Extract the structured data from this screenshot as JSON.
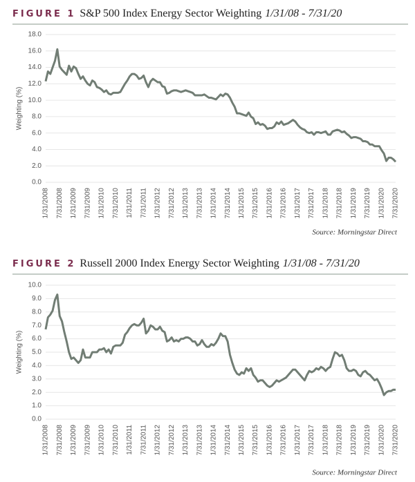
{
  "chart_data": [
    {
      "type": "line",
      "figure_label": "FIGURE 1",
      "title": "S&P 500 Index Energy Sector Weighting",
      "title_dates": "1/31/08 - 7/31/20",
      "y_label": "Weighting (%)",
      "source": "Source: Morningstar Direct",
      "color": "#717d74",
      "grid": true,
      "ylim": [
        0,
        18
      ],
      "yticks": [
        {
          "value": 0,
          "label": "0.0"
        },
        {
          "value": 2,
          "label": "2.0"
        },
        {
          "value": 4,
          "label": "4.0"
        },
        {
          "value": 6,
          "label": "6.0"
        },
        {
          "value": 8,
          "label": "8.0"
        },
        {
          "value": 10,
          "label": "10.0"
        },
        {
          "value": 12,
          "label": "12.0"
        },
        {
          "value": 14,
          "label": "14.0"
        },
        {
          "value": 16,
          "label": "16.0"
        },
        {
          "value": 18,
          "label": "18.0"
        }
      ],
      "categories": [
        "1/31/2008",
        null,
        null,
        null,
        null,
        null,
        "7/31/2008",
        null,
        null,
        null,
        null,
        null,
        "1/31/2009",
        null,
        null,
        null,
        null,
        null,
        "7/31/2009",
        null,
        null,
        null,
        null,
        null,
        "1/31/2010",
        null,
        null,
        null,
        null,
        null,
        "7/31/2010",
        null,
        null,
        null,
        null,
        null,
        "1/31/2011",
        null,
        null,
        null,
        null,
        null,
        "7/31/2011",
        null,
        null,
        null,
        null,
        null,
        "1/31/2012",
        null,
        null,
        null,
        null,
        null,
        "7/31/2012",
        null,
        null,
        null,
        null,
        null,
        "1/31/2013",
        null,
        null,
        null,
        null,
        null,
        "7/31/2013",
        null,
        null,
        null,
        null,
        null,
        "1/31/2014",
        null,
        null,
        null,
        null,
        null,
        "7/31/2014",
        null,
        null,
        null,
        null,
        null,
        "1/31/2015",
        null,
        null,
        null,
        null,
        null,
        "7/31/2015",
        null,
        null,
        null,
        null,
        null,
        "1/31/2016",
        null,
        null,
        null,
        null,
        null,
        "7/31/2016",
        null,
        null,
        null,
        null,
        null,
        "1/31/2017",
        null,
        null,
        null,
        null,
        null,
        "7/31/2017",
        null,
        null,
        null,
        null,
        null,
        "1/31/2018",
        null,
        null,
        null,
        null,
        null,
        "7/31/2018",
        null,
        null,
        null,
        null,
        null,
        "1/31/2019",
        null,
        null,
        null,
        null,
        null,
        "7/31/2019",
        null,
        null,
        null,
        null,
        null,
        "1/31/2020",
        null,
        null,
        null,
        null,
        null,
        "7/31/2020"
      ],
      "values": [
        12.3,
        13.5,
        13.2,
        14.0,
        14.8,
        16.2,
        14.1,
        13.7,
        13.4,
        13.1,
        14.2,
        13.5,
        14.1,
        13.9,
        13.2,
        12.6,
        12.9,
        12.4,
        12.0,
        11.8,
        12.4,
        12.2,
        11.6,
        11.5,
        11.3,
        11.0,
        11.2,
        10.8,
        10.7,
        10.9,
        10.9,
        10.9,
        11.0,
        11.5,
        12.0,
        12.4,
        12.9,
        13.2,
        13.2,
        13.0,
        12.6,
        12.7,
        13.0,
        12.2,
        11.6,
        12.3,
        12.6,
        12.4,
        12.2,
        12.2,
        11.7,
        11.6,
        10.8,
        10.9,
        11.1,
        11.2,
        11.2,
        11.1,
        11.0,
        11.1,
        11.2,
        11.1,
        11.0,
        10.9,
        10.6,
        10.6,
        10.6,
        10.6,
        10.7,
        10.5,
        10.3,
        10.3,
        10.2,
        10.1,
        10.4,
        10.7,
        10.5,
        10.8,
        10.7,
        10.3,
        9.7,
        9.2,
        8.4,
        8.4,
        8.3,
        8.2,
        8.1,
        8.5,
        8.0,
        7.8,
        7.1,
        7.3,
        7.0,
        7.1,
        6.9,
        6.5,
        6.6,
        6.6,
        6.8,
        7.3,
        7.1,
        7.4,
        7.0,
        7.1,
        7.2,
        7.4,
        7.6,
        7.4,
        7.0,
        6.7,
        6.5,
        6.4,
        6.1,
        6.0,
        6.1,
        5.8,
        6.1,
        6.1,
        6.0,
        6.1,
        6.2,
        5.8,
        5.8,
        6.2,
        6.3,
        6.4,
        6.3,
        6.1,
        6.2,
        5.9,
        5.7,
        5.4,
        5.5,
        5.5,
        5.4,
        5.3,
        5.0,
        5.0,
        4.9,
        4.6,
        4.6,
        4.4,
        4.4,
        4.4,
        3.9,
        3.5,
        2.6,
        3.0,
        3.0,
        2.8,
        2.5
      ]
    },
    {
      "type": "line",
      "figure_label": "FIGURE 2",
      "title": "Russell 2000 Index Energy Sector Weighting",
      "title_dates": "1/31/08 - 7/31/20",
      "y_label": "Weighting (%)",
      "source": "Source: Morningstar Direct",
      "color": "#717d74",
      "grid": true,
      "ylim": [
        0,
        10
      ],
      "yticks": [
        {
          "value": 0,
          "label": "0.0"
        },
        {
          "value": 1,
          "label": "1.0"
        },
        {
          "value": 2,
          "label": "2.0"
        },
        {
          "value": 3,
          "label": "3.0"
        },
        {
          "value": 4,
          "label": "4.0"
        },
        {
          "value": 5,
          "label": "5.0"
        },
        {
          "value": 6,
          "label": "6.0"
        },
        {
          "value": 7,
          "label": "7.0"
        },
        {
          "value": 8,
          "label": "8.0"
        },
        {
          "value": 9,
          "label": "9.0"
        },
        {
          "value": 10,
          "label": "10.0"
        }
      ],
      "categories": [
        "1/31/2008",
        null,
        null,
        null,
        null,
        null,
        "7/31/2008",
        null,
        null,
        null,
        null,
        null,
        "1/31/2009",
        null,
        null,
        null,
        null,
        null,
        "7/31/2009",
        null,
        null,
        null,
        null,
        null,
        "1/31/2010",
        null,
        null,
        null,
        null,
        null,
        "7/31/2010",
        null,
        null,
        null,
        null,
        null,
        "1/31/2011",
        null,
        null,
        null,
        null,
        null,
        "7/31/2011",
        null,
        null,
        null,
        null,
        null,
        "1/31/2012",
        null,
        null,
        null,
        null,
        null,
        "7/31/2012",
        null,
        null,
        null,
        null,
        null,
        "1/31/2013",
        null,
        null,
        null,
        null,
        null,
        "7/31/2013",
        null,
        null,
        null,
        null,
        null,
        "1/31/2014",
        null,
        null,
        null,
        null,
        null,
        "7/31/2014",
        null,
        null,
        null,
        null,
        null,
        "1/31/2015",
        null,
        null,
        null,
        null,
        null,
        "7/31/2015",
        null,
        null,
        null,
        null,
        null,
        "1/31/2016",
        null,
        null,
        null,
        null,
        null,
        "7/31/2016",
        null,
        null,
        null,
        null,
        null,
        "1/31/2017",
        null,
        null,
        null,
        null,
        null,
        "7/31/2017",
        null,
        null,
        null,
        null,
        null,
        "1/31/2018",
        null,
        null,
        null,
        null,
        null,
        "7/31/2018",
        null,
        null,
        null,
        null,
        null,
        "1/31/2019",
        null,
        null,
        null,
        null,
        null,
        "7/31/2019",
        null,
        null,
        null,
        null,
        null,
        "1/31/2020",
        null,
        null,
        null,
        null,
        null,
        "7/31/2020"
      ],
      "values": [
        6.7,
        7.6,
        7.8,
        8.1,
        8.9,
        9.3,
        7.7,
        7.3,
        6.5,
        5.8,
        5.0,
        4.5,
        4.6,
        4.4,
        4.2,
        4.4,
        5.2,
        4.6,
        4.6,
        4.6,
        5.0,
        5.0,
        5.0,
        5.2,
        5.2,
        5.3,
        5.0,
        5.2,
        4.9,
        5.4,
        5.5,
        5.5,
        5.5,
        5.7,
        6.3,
        6.5,
        6.8,
        7.0,
        7.1,
        7.0,
        7.0,
        7.2,
        7.5,
        6.4,
        6.6,
        7.0,
        6.9,
        6.7,
        6.7,
        6.9,
        6.6,
        6.5,
        5.8,
        5.9,
        6.1,
        5.8,
        5.9,
        5.8,
        6.0,
        6.0,
        6.1,
        6.1,
        6.0,
        5.8,
        5.8,
        5.5,
        5.6,
        5.9,
        5.6,
        5.4,
        5.4,
        5.6,
        5.5,
        5.7,
        6.0,
        6.4,
        6.2,
        6.2,
        5.8,
        4.8,
        4.2,
        3.7,
        3.4,
        3.3,
        3.5,
        3.4,
        3.8,
        3.6,
        3.8,
        3.3,
        3.1,
        2.8,
        2.9,
        2.9,
        2.7,
        2.5,
        2.4,
        2.5,
        2.7,
        2.9,
        2.8,
        2.9,
        3.0,
        3.1,
        3.3,
        3.5,
        3.7,
        3.7,
        3.5,
        3.3,
        3.1,
        2.9,
        3.3,
        3.6,
        3.5,
        3.6,
        3.8,
        3.7,
        3.9,
        3.8,
        3.6,
        3.8,
        3.9,
        4.5,
        5.0,
        4.9,
        4.7,
        4.8,
        4.4,
        3.8,
        3.6,
        3.6,
        3.7,
        3.6,
        3.3,
        3.2,
        3.5,
        3.6,
        3.4,
        3.3,
        3.1,
        2.9,
        3.0,
        2.7,
        2.3,
        1.8,
        2.0,
        2.1,
        2.1,
        2.2,
        2.2
      ]
    }
  ]
}
